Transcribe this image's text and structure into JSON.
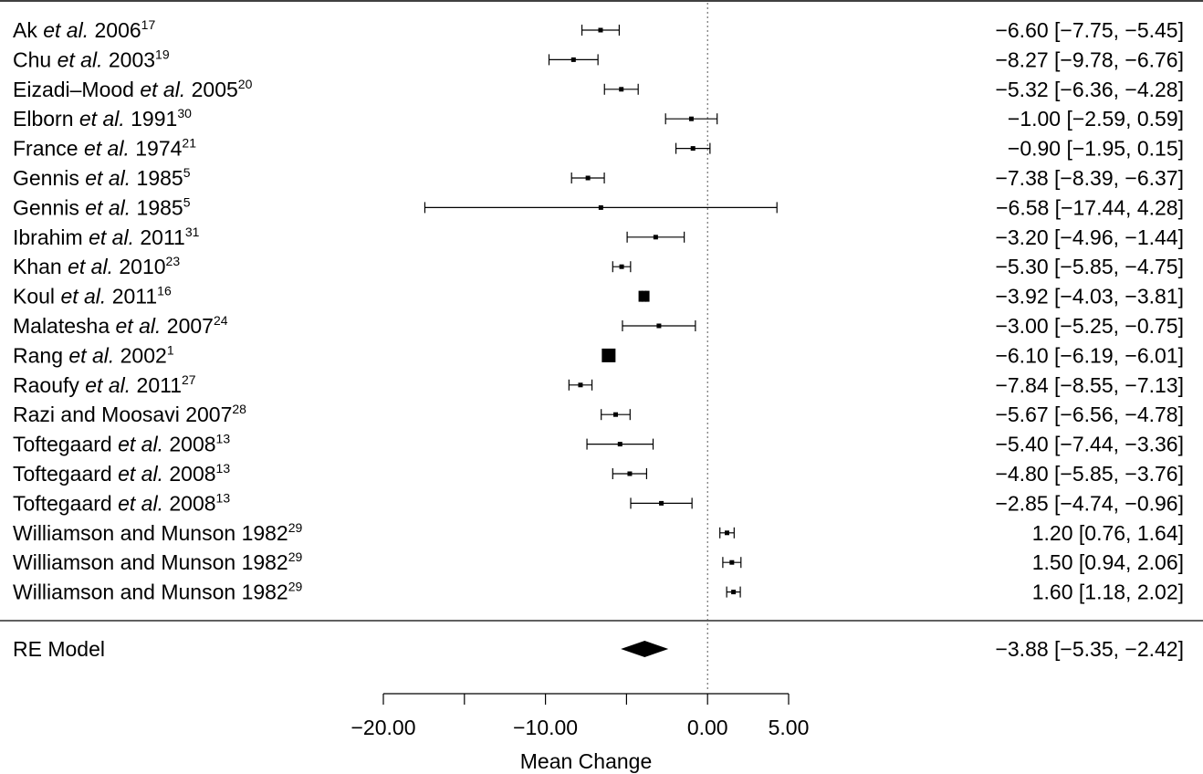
{
  "chart_data": {
    "type": "forest",
    "xlabel": "Mean Change",
    "xlim": [
      -20,
      5
    ],
    "ticks": [
      -20,
      -15,
      -10,
      -5,
      0,
      5
    ],
    "tick_labels": [
      {
        "value": -20,
        "label": "−20.00"
      },
      {
        "value": -10,
        "label": "−10.00"
      },
      {
        "value": 0,
        "label": "0.00"
      },
      {
        "value": 5,
        "label": "5.00"
      }
    ],
    "reference_line": 0,
    "studies": [
      {
        "name": "Ak",
        "etal": true,
        "year": "2006",
        "ref": "17",
        "estimate": -6.6,
        "lower": -7.75,
        "upper": -5.45,
        "ci_text": "−6.60 [−7.75, −5.45]",
        "marker": "point"
      },
      {
        "name": "Chu",
        "etal": true,
        "year": "2003",
        "ref": "19",
        "estimate": -8.27,
        "lower": -9.78,
        "upper": -6.76,
        "ci_text": "−8.27 [−9.78, −6.76]",
        "marker": "point"
      },
      {
        "name": "Eizadi–Mood",
        "etal": true,
        "year": "2005",
        "ref": "20",
        "estimate": -5.32,
        "lower": -6.36,
        "upper": -4.28,
        "ci_text": "−5.32 [−6.36, −4.28]",
        "marker": "point"
      },
      {
        "name": "Elborn",
        "etal": true,
        "year": "1991",
        "ref": "30",
        "estimate": -1.0,
        "lower": -2.59,
        "upper": 0.59,
        "ci_text": "−1.00 [−2.59, 0.59]",
        "marker": "point"
      },
      {
        "name": "France",
        "etal": true,
        "year": "1974",
        "ref": "21",
        "estimate": -0.9,
        "lower": -1.95,
        "upper": 0.15,
        "ci_text": "−0.90 [−1.95, 0.15]",
        "marker": "point"
      },
      {
        "name": "Gennis",
        "etal": true,
        "year": "1985",
        "ref": "5",
        "estimate": -7.38,
        "lower": -8.39,
        "upper": -6.37,
        "ci_text": "−7.38 [−8.39, −6.37]",
        "marker": "point"
      },
      {
        "name": "Gennis",
        "etal": true,
        "year": "1985",
        "ref": "5",
        "estimate": -6.58,
        "lower": -17.44,
        "upper": 4.28,
        "ci_text": "−6.58 [−17.44, 4.28]",
        "marker": "point"
      },
      {
        "name": "Ibrahim",
        "etal": true,
        "year": "2011",
        "ref": "31",
        "estimate": -3.2,
        "lower": -4.96,
        "upper": -1.44,
        "ci_text": "−3.20 [−4.96, −1.44]",
        "marker": "point"
      },
      {
        "name": "Khan",
        "etal": true,
        "year": "2010",
        "ref": "23",
        "estimate": -5.3,
        "lower": -5.85,
        "upper": -4.75,
        "ci_text": "−5.30 [−5.85, −4.75]",
        "marker": "point"
      },
      {
        "name": "Koul",
        "etal": true,
        "year": "2011",
        "ref": "16",
        "estimate": -3.92,
        "lower": -4.03,
        "upper": -3.81,
        "ci_text": "−3.92 [−4.03, −3.81]",
        "marker": "square"
      },
      {
        "name": "Malatesha",
        "etal": true,
        "year": "2007",
        "ref": "24",
        "estimate": -3.0,
        "lower": -5.25,
        "upper": -0.75,
        "ci_text": "−3.00 [−5.25, −0.75]",
        "marker": "point"
      },
      {
        "name": "Rang",
        "etal": true,
        "year": "2002",
        "ref": "1",
        "estimate": -6.1,
        "lower": -6.19,
        "upper": -6.01,
        "ci_text": "−6.10 [−6.19, −6.01]",
        "marker": "square-large"
      },
      {
        "name": "Raoufy",
        "etal": true,
        "year": "2011",
        "ref": "27",
        "estimate": -7.84,
        "lower": -8.55,
        "upper": -7.13,
        "ci_text": "−7.84 [−8.55, −7.13]",
        "marker": "point"
      },
      {
        "name": "Razi and Moosavi",
        "etal": false,
        "year": "2007",
        "ref": "28",
        "estimate": -5.67,
        "lower": -6.56,
        "upper": -4.78,
        "ci_text": "−5.67 [−6.56, −4.78]",
        "marker": "point"
      },
      {
        "name": "Toftegaard",
        "etal": true,
        "year": "2008",
        "ref": "13",
        "estimate": -5.4,
        "lower": -7.44,
        "upper": -3.36,
        "ci_text": "−5.40 [−7.44, −3.36]",
        "marker": "point"
      },
      {
        "name": "Toftegaard",
        "etal": true,
        "year": "2008",
        "ref": "13",
        "estimate": -4.8,
        "lower": -5.85,
        "upper": -3.76,
        "ci_text": "−4.80 [−5.85, −3.76]",
        "marker": "point"
      },
      {
        "name": "Toftegaard",
        "etal": true,
        "year": "2008",
        "ref": "13",
        "estimate": -2.85,
        "lower": -4.74,
        "upper": -0.96,
        "ci_text": "−2.85 [−4.74, −0.96]",
        "marker": "point"
      },
      {
        "name": "Williamson and Munson",
        "etal": false,
        "year": "1982",
        "ref": "29",
        "estimate": 1.2,
        "lower": 0.76,
        "upper": 1.64,
        "ci_text": "1.20 [0.76, 1.64]",
        "marker": "point"
      },
      {
        "name": "Williamson and Munson",
        "etal": false,
        "year": "1982",
        "ref": "29",
        "estimate": 1.5,
        "lower": 0.94,
        "upper": 2.06,
        "ci_text": "1.50 [0.94, 2.06]",
        "marker": "point"
      },
      {
        "name": "Williamson and Munson",
        "etal": false,
        "year": "1982",
        "ref": "29",
        "estimate": 1.6,
        "lower": 1.18,
        "upper": 2.02,
        "ci_text": "1.60 [1.18, 2.02]",
        "marker": "point"
      }
    ],
    "summary": {
      "label": "RE Model",
      "estimate": -3.88,
      "lower": -5.35,
      "upper": -2.42,
      "ci_text": "−3.88 [−5.35, −2.42]"
    },
    "etal_text": "et al."
  }
}
